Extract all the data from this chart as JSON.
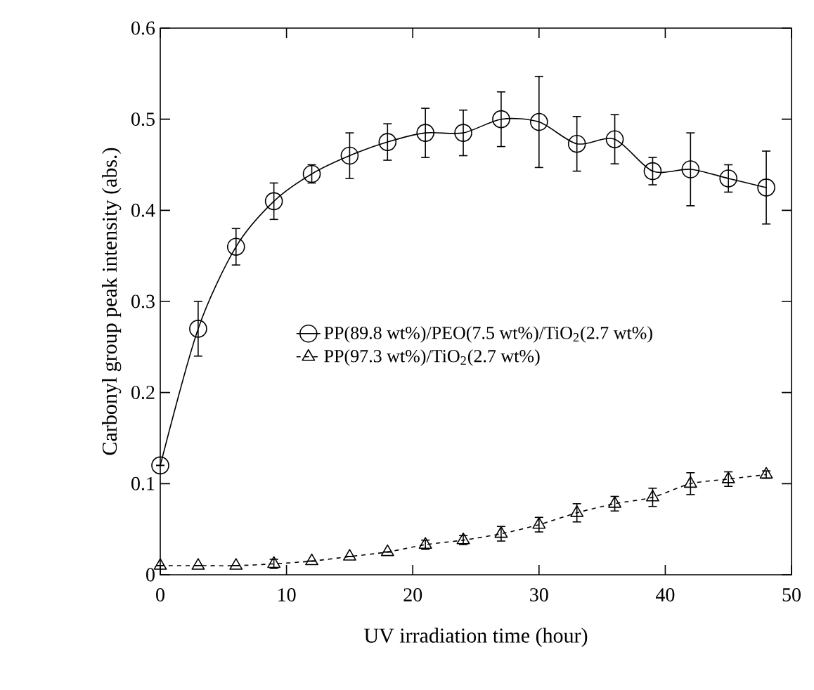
{
  "chart_data": {
    "type": "line",
    "xlabel": "UV irradiation time (hour)",
    "ylabel": "Carbonyl group peak intensity (abs.)",
    "x": [
      0,
      3,
      6,
      9,
      12,
      15,
      18,
      21,
      24,
      27,
      30,
      33,
      36,
      39,
      42,
      45,
      48
    ],
    "series": [
      {
        "name": "PP(89.8 wt%)/PEO(7.5 wt%)/TiO$_{2}$(2.7 wt%)",
        "color": "#000000",
        "marker": "circle",
        "line_style": "solid",
        "values": [
          0.12,
          0.27,
          0.36,
          0.41,
          0.44,
          0.46,
          0.475,
          0.485,
          0.485,
          0.5,
          0.497,
          0.473,
          0.478,
          0.443,
          0.445,
          0.435,
          0.425
        ],
        "errors": [
          null,
          0.03,
          0.02,
          0.02,
          0.01,
          0.025,
          0.02,
          0.027,
          0.025,
          0.03,
          0.05,
          0.03,
          0.027,
          0.015,
          0.04,
          0.015,
          0.04
        ]
      },
      {
        "name": "PP(97.3 wt%)/TiO$_{2}$(2.7 wt%)",
        "color": "#000000",
        "marker": "triangle",
        "line_style": "dashed",
        "values": [
          0.01,
          0.01,
          0.01,
          0.012,
          0.015,
          0.02,
          0.025,
          0.033,
          0.038,
          0.045,
          0.055,
          0.068,
          0.078,
          0.085,
          0.1,
          0.105,
          0.11
        ],
        "errors": [
          null,
          null,
          null,
          0.005,
          null,
          null,
          null,
          0.005,
          0.005,
          0.008,
          0.008,
          0.01,
          0.008,
          0.01,
          0.012,
          0.008,
          0.004
        ]
      }
    ],
    "xlim": [
      0,
      50
    ],
    "xticks": [
      0,
      10,
      20,
      30,
      40,
      50
    ],
    "ylim": [
      0,
      0.6
    ],
    "yticks": [
      0,
      0.1,
      0.2,
      0.3,
      0.4,
      0.5,
      0.6
    ],
    "legend": "center",
    "grid": false
  }
}
